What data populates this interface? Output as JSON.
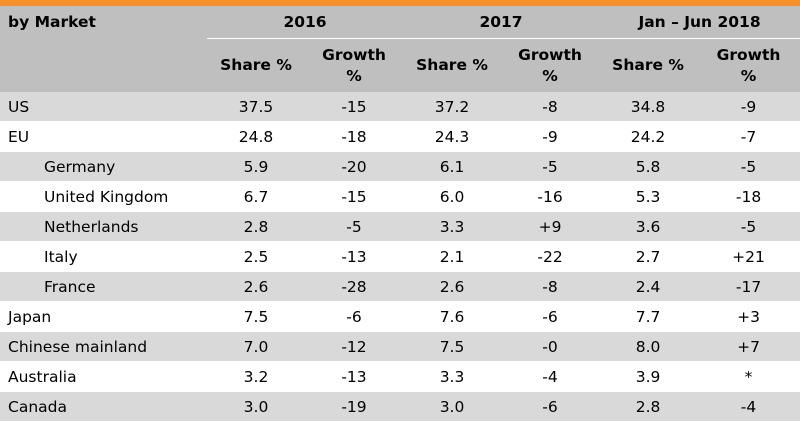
{
  "header": {
    "market_label": "by Market",
    "periods": [
      "2016",
      "2017",
      "Jan – Jun 2018"
    ],
    "share_label": "Share %",
    "growth_label_line1": "Growth",
    "growth_label_line2": "%"
  },
  "rows": [
    {
      "market": "US",
      "indent": false,
      "values": [
        "37.5",
        "-15",
        "37.2",
        "-8",
        "34.8",
        "-9"
      ]
    },
    {
      "market": "EU",
      "indent": false,
      "values": [
        "24.8",
        "-18",
        "24.3",
        "-9",
        "24.2",
        "-7"
      ]
    },
    {
      "market": "Germany",
      "indent": true,
      "values": [
        "5.9",
        "-20",
        "6.1",
        "-5",
        "5.8",
        "-5"
      ]
    },
    {
      "market": "United Kingdom",
      "indent": true,
      "values": [
        "6.7",
        "-15",
        "6.0",
        "-16",
        "5.3",
        "-18"
      ]
    },
    {
      "market": "Netherlands",
      "indent": true,
      "values": [
        "2.8",
        "-5",
        "3.3",
        "+9",
        "3.6",
        "-5"
      ]
    },
    {
      "market": "Italy",
      "indent": true,
      "values": [
        "2.5",
        "-13",
        "2.1",
        "-22",
        "2.7",
        "+21"
      ]
    },
    {
      "market": "France",
      "indent": true,
      "values": [
        "2.6",
        "-28",
        "2.6",
        "-8",
        "2.4",
        "-17"
      ]
    },
    {
      "market": "Japan",
      "indent": false,
      "values": [
        "7.5",
        "-6",
        "7.6",
        "-6",
        "7.7",
        "+3"
      ]
    },
    {
      "market": "Chinese mainland",
      "indent": false,
      "values": [
        "7.0",
        "-12",
        "7.5",
        "-0",
        "8.0",
        "+7"
      ]
    },
    {
      "market": "Australia",
      "indent": false,
      "values": [
        "3.2",
        "-13",
        "3.3",
        "-4",
        "3.9",
        "*"
      ]
    },
    {
      "market": "Canada",
      "indent": false,
      "values": [
        "3.0",
        "-19",
        "3.0",
        "-6",
        "2.8",
        "-4"
      ]
    }
  ],
  "colors": {
    "accent_bar": "#f7902a",
    "header_bg": "#bfbfbf",
    "stripe_bg": "#d9d9d9"
  }
}
